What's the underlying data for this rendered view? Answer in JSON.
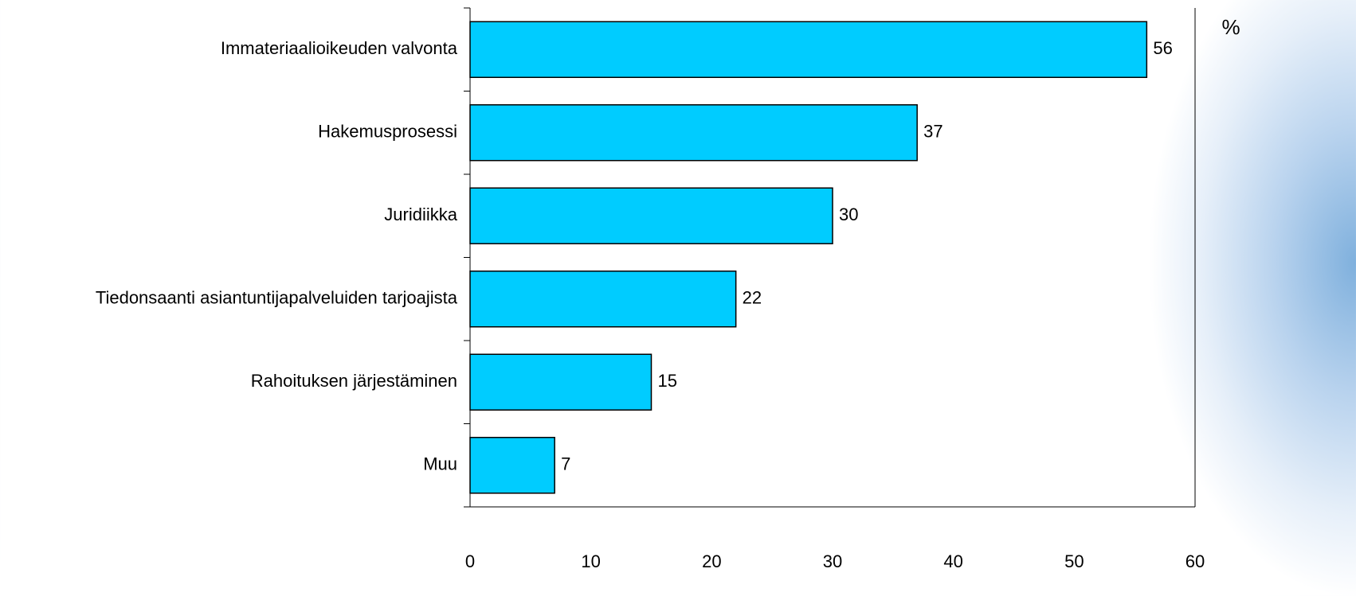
{
  "chart_data": {
    "type": "barh",
    "categories": [
      "Immateriaalioikeuden valvonta",
      "Hakemusprosessi",
      "Juridiikka",
      "Tiedonsaanti asiantuntijapalveluiden tarjoajista",
      "Rahoituksen järjestäminen",
      "Muu"
    ],
    "values": [
      56,
      37,
      30,
      22,
      15,
      7
    ],
    "color": "#00ccff",
    "xlabel": "%",
    "xlim": [
      0,
      60
    ],
    "xticks": [
      0,
      10,
      20,
      30,
      40,
      50,
      60
    ],
    "grid": false
  }
}
